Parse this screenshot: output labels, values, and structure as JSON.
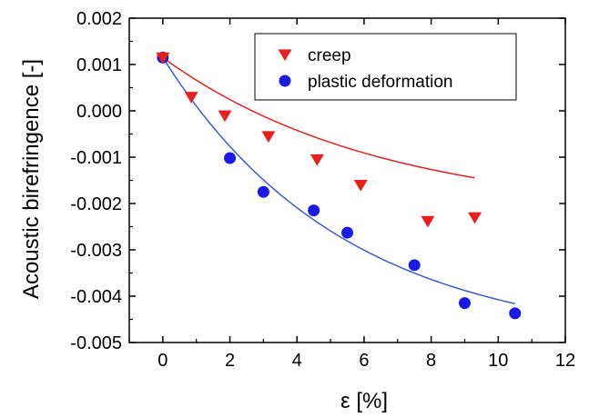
{
  "chart_data": {
    "type": "scatter",
    "xlabel": "ε [%]",
    "ylabel": "Acoustic birefringence [-]",
    "xlim": [
      -1,
      12
    ],
    "ylim": [
      -0.005,
      0.002
    ],
    "x_ticks": [
      0,
      2,
      4,
      6,
      8,
      10,
      12
    ],
    "x_tick_labels": [
      "0",
      "2",
      "4",
      "6",
      "8",
      "10",
      "12"
    ],
    "y_ticks": [
      0.002,
      0.001,
      0.0,
      -0.001,
      -0.002,
      -0.003,
      -0.004,
      -0.005
    ],
    "y_tick_labels": [
      "0.002",
      "0.001",
      "0.000",
      "-0.001",
      "-0.002",
      "-0.003",
      "-0.004",
      "-0.005"
    ],
    "grid": false,
    "legend_position": "top-right",
    "series": [
      {
        "name": "creep",
        "marker": "triangle-down",
        "color": "#e8201c",
        "x": [
          0.0,
          0.85,
          1.85,
          3.15,
          4.6,
          5.9,
          7.9,
          9.3
        ],
        "y": [
          0.00115,
          0.0003,
          -0.0001,
          -0.00055,
          -0.00105,
          -0.0016,
          -0.00238,
          -0.0023
        ],
        "fit": {
          "x_range": [
            0.0,
            9.3
          ],
          "a": 0.0034,
          "b": -0.00225,
          "k": 0.155
        }
      },
      {
        "name": "plastic deformation",
        "marker": "circle",
        "color": "#1a1ae6",
        "x": [
          0.0,
          2.0,
          3.0,
          4.5,
          5.5,
          7.5,
          9.0,
          10.5
        ],
        "y": [
          0.00115,
          -0.00102,
          -0.00175,
          -0.00215,
          -0.00263,
          -0.00333,
          -0.00415,
          -0.00437
        ],
        "fit": {
          "x_range": [
            0.0,
            10.5
          ],
          "a": 0.0062,
          "b": -0.00505,
          "k": 0.185,
          "color": "#3a5bdc"
        }
      }
    ]
  }
}
